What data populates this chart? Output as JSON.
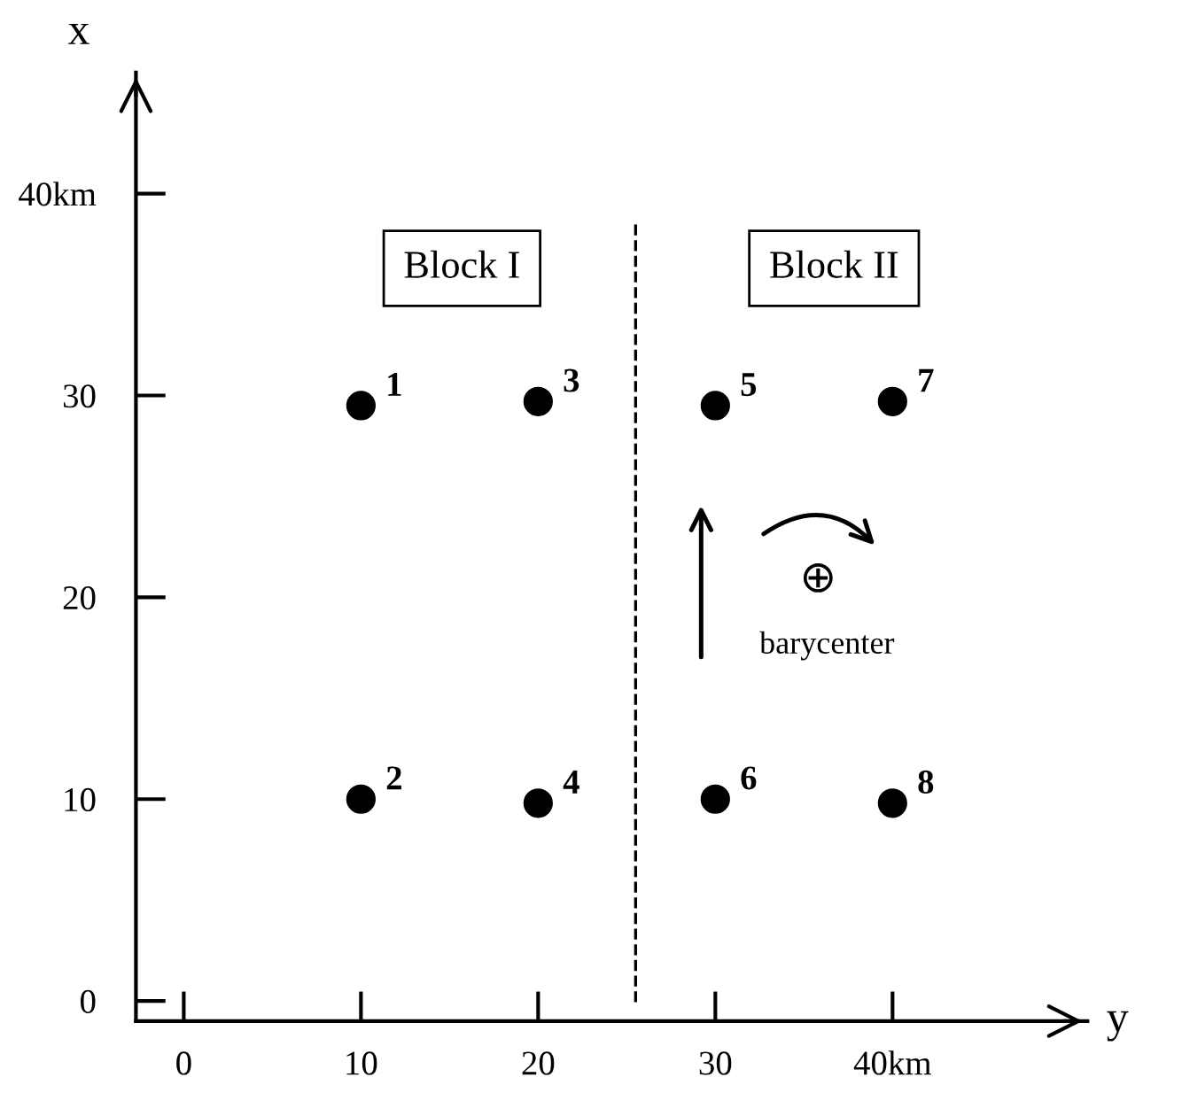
{
  "chart_data": {
    "type": "scatter",
    "xlabel": "y",
    "ylabel": "x",
    "series": [
      {
        "color": "#000000",
        "x": [
          10,
          10,
          20,
          20,
          30,
          30,
          40,
          40
        ],
        "values": [
          29.5,
          10,
          29.7,
          9.8,
          29.5,
          10,
          29.7,
          9.8
        ]
      }
    ],
    "xlim": [
      -2.7,
      51
    ],
    "ylim": [
      -1,
      46
    ],
    "xticks": [
      0,
      10,
      20,
      30,
      {
        "value": 40,
        "label": "40km"
      }
    ],
    "yticks": [
      0,
      10,
      20,
      30,
      {
        "value": 40,
        "label": "40km"
      }
    ],
    "ref_lines": [
      {
        "axis": "x",
        "value": 25.5,
        "color": "#000000",
        "line_style": "dashed"
      }
    ],
    "annotations": [
      "Block I",
      "Block II",
      "⊕",
      "barycenter",
      {
        "text": "1",
        "x": 10,
        "y": 29.5
      },
      {
        "text": "2",
        "x": 10,
        "y": 10
      },
      {
        "text": "3",
        "x": 20,
        "y": 29.7
      },
      {
        "text": "4",
        "x": 20,
        "y": 9.8
      },
      {
        "text": "5",
        "x": 30,
        "y": 29.5
      },
      {
        "text": "6",
        "x": 30,
        "y": 10
      },
      {
        "text": "7",
        "x": 40,
        "y": 29.7
      },
      {
        "text": "8",
        "x": 40,
        "y": 9.8
      }
    ],
    "marker": "circle",
    "grid": false
  }
}
